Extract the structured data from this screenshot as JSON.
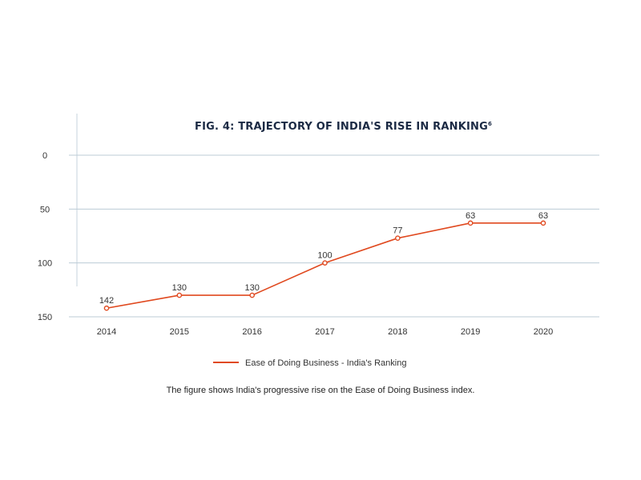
{
  "chart_data": {
    "type": "line",
    "title": "FIG. 4: TRAJECTORY OF INDIA'S RISE IN RANKING",
    "title_superscript": "6",
    "categories": [
      "2014",
      "2015",
      "2016",
      "2017",
      "2018",
      "2019",
      "2020"
    ],
    "series": [
      {
        "name": "Ease of Doing Business - India's Ranking",
        "values": [
          142,
          130,
          130,
          100,
          77,
          63,
          63
        ],
        "color": "#e0491f"
      }
    ],
    "yticks": [
      "0",
      "50",
      "100",
      "150"
    ],
    "ylim": [
      0,
      150
    ],
    "y_inverted": true,
    "grid": "horizontal",
    "legend_position": "bottom-center"
  },
  "caption": "The figure shows India's progressive rise on the Ease of Doing Business index."
}
